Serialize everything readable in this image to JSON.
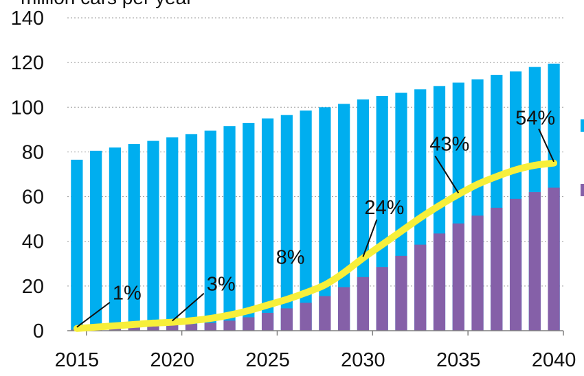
{
  "chart_data": {
    "type": "bar",
    "unit_label": "million cars per year",
    "x": [
      2015,
      2016,
      2017,
      2018,
      2019,
      2020,
      2021,
      2022,
      2023,
      2024,
      2025,
      2026,
      2027,
      2028,
      2029,
      2030,
      2031,
      2032,
      2033,
      2034,
      2035,
      2036,
      2037,
      2038,
      2039,
      2040
    ],
    "x_ticks": [
      "2015",
      "2020",
      "2025",
      "2030",
      "2035",
      "2040"
    ],
    "ylim": [
      0,
      140
    ],
    "y_ticks": [
      "0",
      "20",
      "40",
      "60",
      "80",
      "100",
      "120",
      "140"
    ],
    "grid": "horizontal dotted",
    "legend": "right (labels cut off)",
    "series": [
      {
        "kind": "total-bar",
        "color": "#00AEEF",
        "values": [
          76.5,
          80.5,
          82,
          83.5,
          85,
          86.5,
          88,
          89.5,
          91.5,
          93,
          95,
          96.5,
          98.5,
          100,
          101.5,
          103.5,
          105,
          106.5,
          108,
          109.5,
          111,
          112.5,
          114.5,
          116,
          118,
          119.5
        ]
      },
      {
        "kind": "bar",
        "color": "#8560A8",
        "values": [
          0.5,
          0.5,
          1,
          1.5,
          2,
          2.5,
          3,
          3.5,
          4.5,
          6,
          8,
          10,
          12.5,
          15.5,
          19.5,
          24,
          28.5,
          33.5,
          38.5,
          43.5,
          48,
          51.5,
          55,
          59,
          62,
          64
        ]
      },
      {
        "kind": "line",
        "color": "#F7EF3A",
        "values": [
          1,
          1.6,
          2.2,
          2.8,
          3.4,
          3.8,
          4.5,
          5.5,
          7,
          9,
          11.5,
          14,
          17,
          20.5,
          26,
          32.5,
          38.5,
          44.5,
          50.5,
          56,
          61,
          65.5,
          69,
          72,
          74,
          75
        ]
      }
    ],
    "annotations": [
      {
        "label": "1%",
        "year": 2015
      },
      {
        "label": "3%",
        "year": 2020
      },
      {
        "label": "8%",
        "year": 2025
      },
      {
        "label": "24%",
        "year": 2030
      },
      {
        "label": "43%",
        "year": 2035
      },
      {
        "label": "54%",
        "year": 2040
      }
    ]
  }
}
